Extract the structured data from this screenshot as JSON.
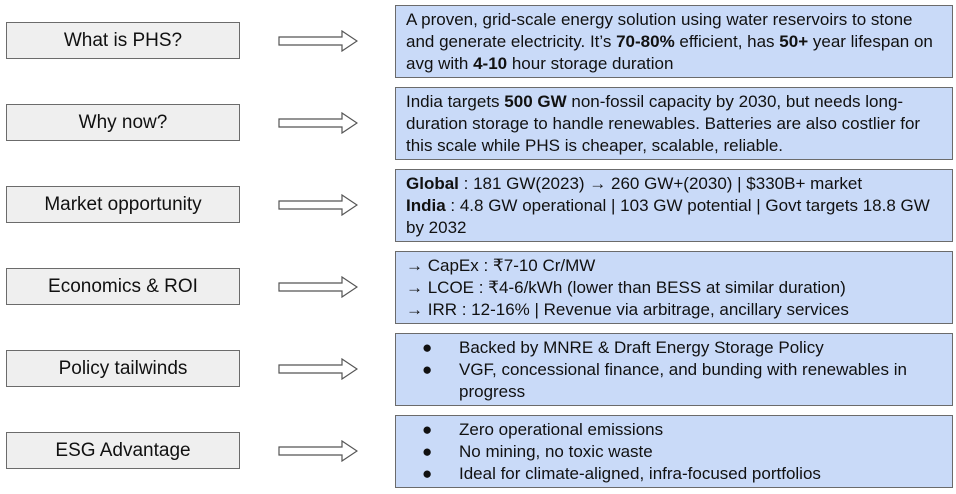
{
  "rows": [
    {
      "label": "What is PHS?",
      "text_parts": [
        "A proven, grid-scale energy solution using water reservoirs to stone and generate electricity. It’s ",
        "70-80%",
        " efficient, has ",
        "50+",
        " year lifespan on avg with ",
        "4-10",
        " hour storage duration"
      ]
    },
    {
      "label": "Why now?",
      "text_parts": [
        "India targets ",
        "500 GW",
        " non-fossil capacity by 2030, but needs long-duration storage to handle renewables. Batteries are also costlier for this scale while PHS is cheaper, scalable, reliable."
      ]
    },
    {
      "label": "Market opportunity",
      "lines": [
        {
          "bold": "Global",
          "text": " : 181 GW(2023) → 260 GW+(2030) | $330B+ market"
        },
        {
          "bold": "India",
          "text": " : 4.8 GW operational | 103 GW potential | Govt targets 18.8 GW by 2032"
        }
      ]
    },
    {
      "label": "Economics & ROI",
      "lines": [
        "→ CapEx : ₹7-10 Cr/MW",
        "→ LCOE : ₹4-6/kWh (lower than BESS at similar duration)",
        "→ IRR : 12-16% | Revenue via arbitrage, ancillary services"
      ]
    },
    {
      "label": "Policy tailwinds",
      "bullet": "●",
      "bullets": [
        "Backed by MNRE & Draft Energy Storage Policy",
        "VGF, concessional finance, and bunding with renewables in progress"
      ]
    },
    {
      "label": "ESG Advantage",
      "bullet": "●",
      "bullets": [
        "Zero operational emissions",
        "No mining, no toxic waste",
        "Ideal for climate-aligned, infra-focused portfolios"
      ]
    }
  ]
}
